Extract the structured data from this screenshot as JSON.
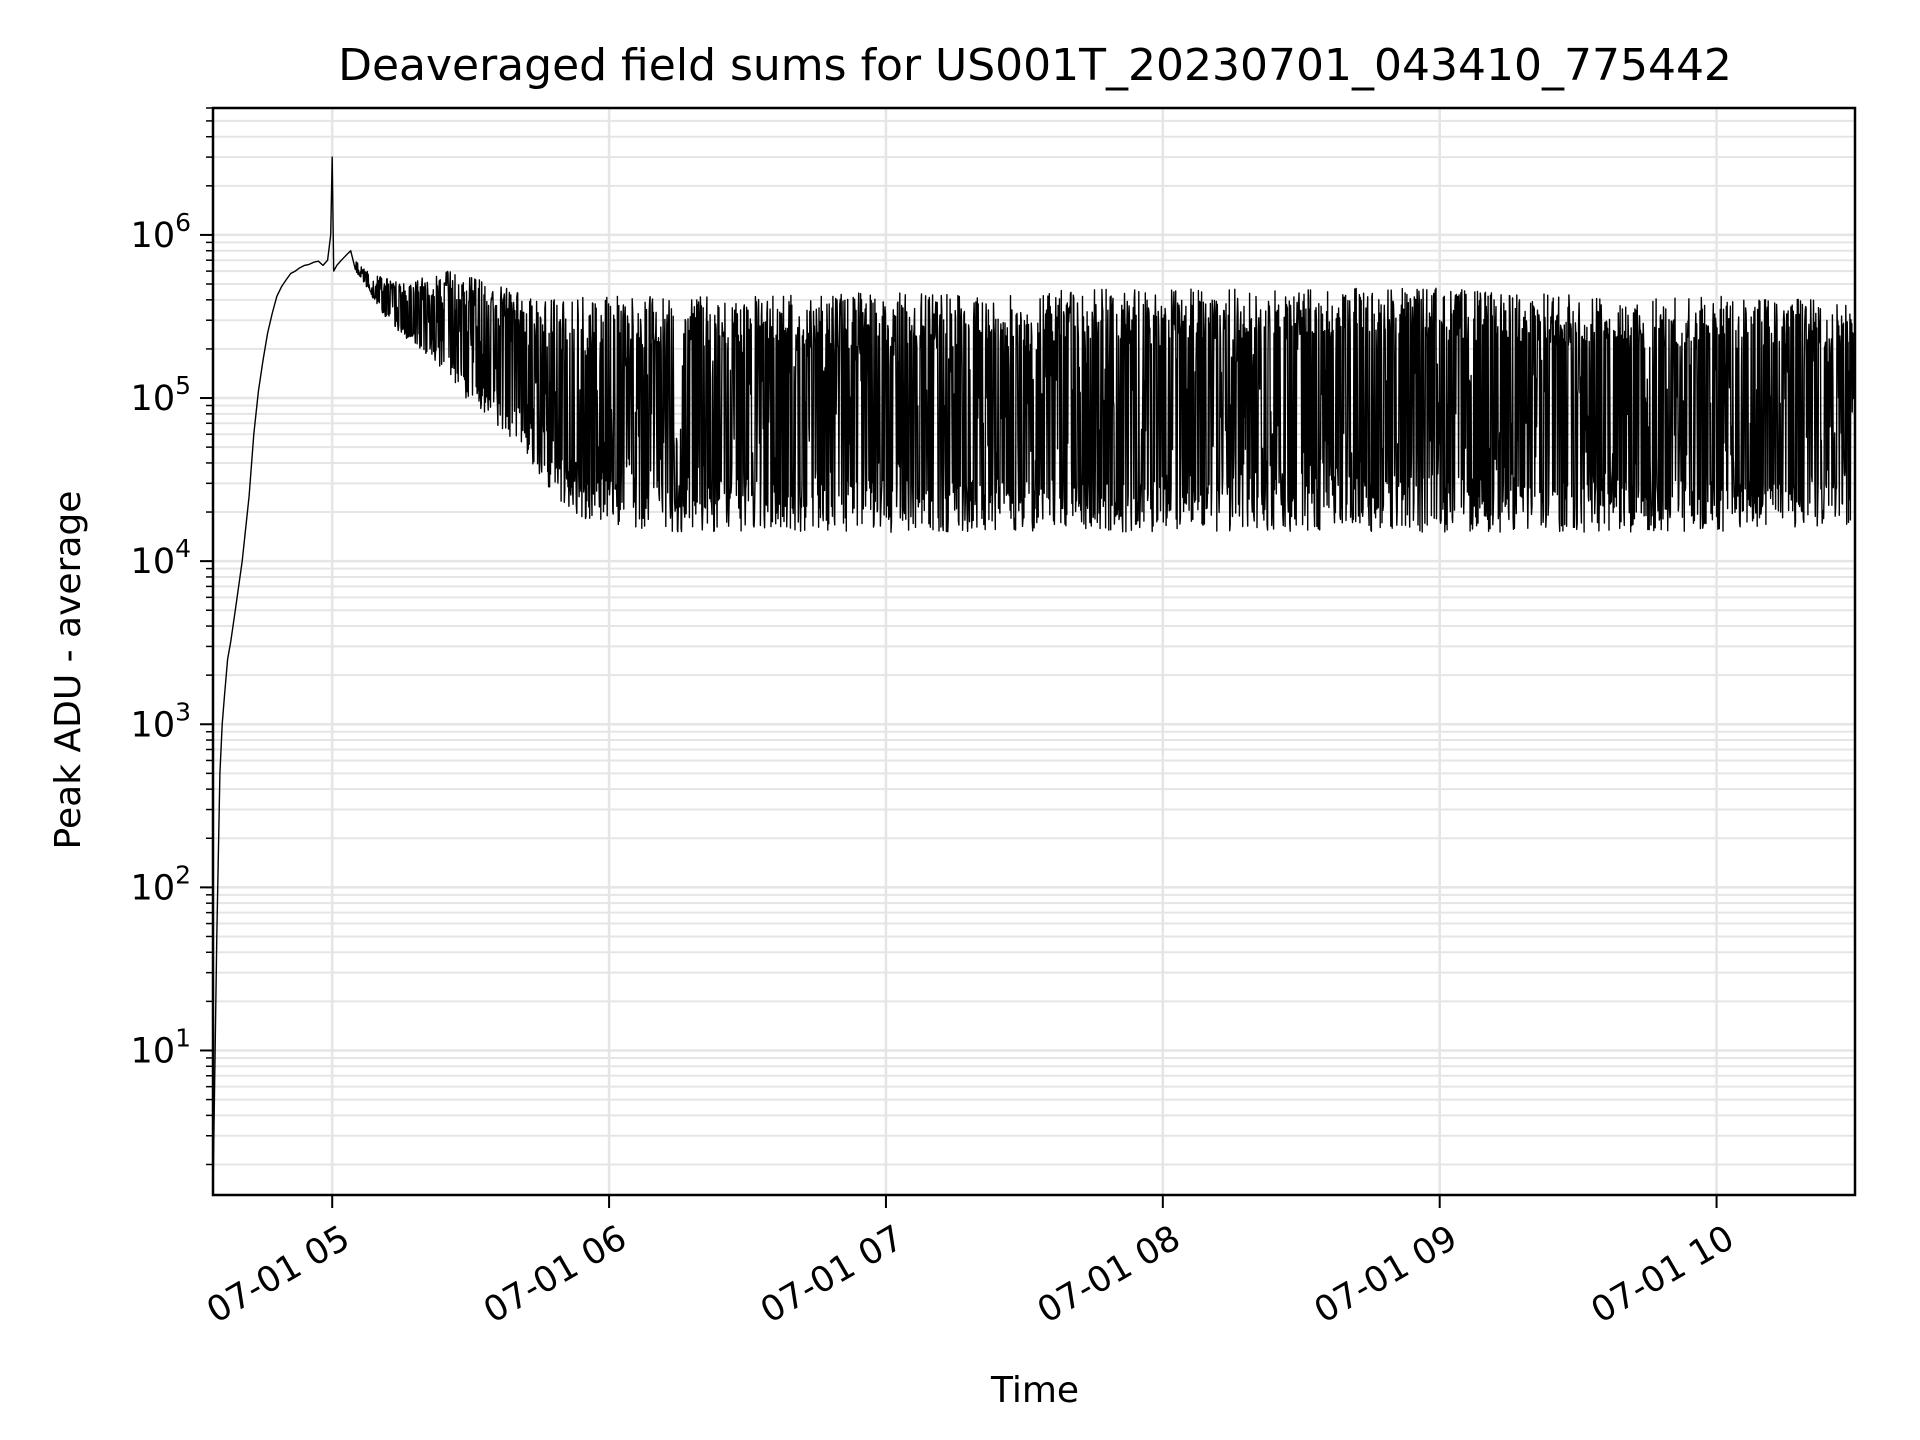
{
  "chart_data": {
    "type": "line",
    "title": "Deaveraged field sums for US001T_20230701_043410_775442",
    "xlabel": "Time",
    "ylabel": "Peak ADU - average",
    "yscale": "log",
    "ylim": [
      1.3,
      6000000
    ],
    "xlim": [
      "2023-07-01 04:34:10",
      "2023-07-01 10:30:00"
    ],
    "grid": true,
    "grid_color": "#e5e5e5",
    "line_color": "#000000",
    "x_ticks": [
      {
        "time": "2023-07-01 05:00:00",
        "label": "07-01 05"
      },
      {
        "time": "2023-07-01 06:00:00",
        "label": "07-01 06"
      },
      {
        "time": "2023-07-01 07:00:00",
        "label": "07-01 07"
      },
      {
        "time": "2023-07-01 08:00:00",
        "label": "07-01 08"
      },
      {
        "time": "2023-07-01 09:00:00",
        "label": "07-01 09"
      },
      {
        "time": "2023-07-01 10:00:00",
        "label": "07-01 10"
      }
    ],
    "y_ticks": [
      {
        "value": 10,
        "base": "10",
        "exp": "1"
      },
      {
        "value": 100,
        "base": "10",
        "exp": "2"
      },
      {
        "value": 1000,
        "base": "10",
        "exp": "3"
      },
      {
        "value": 10000,
        "base": "10",
        "exp": "4"
      },
      {
        "value": 100000,
        "base": "10",
        "exp": "5"
      },
      {
        "value": 1000000,
        "base": "10",
        "exp": "6"
      }
    ],
    "series": [
      {
        "x": [
          "2023-07-01 04:34:10",
          "2023-07-01 04:35:00",
          "2023-07-01 04:35:40",
          "2023-07-01 04:36:10",
          "2023-07-01 04:36:40",
          "2023-07-01 04:37:20",
          "2023-07-01 04:38:00",
          "2023-07-01 04:39:00",
          "2023-07-01 04:40:30",
          "2023-07-01 04:42:00",
          "2023-07-01 04:43:00",
          "2023-07-01 04:44:00",
          "2023-07-01 04:45:00",
          "2023-07-01 04:46:00",
          "2023-07-01 04:47:00",
          "2023-07-01 04:48:00",
          "2023-07-01 04:49:00",
          "2023-07-01 04:50:00",
          "2023-07-01 04:51:00",
          "2023-07-01 04:52:00",
          "2023-07-01 04:53:00",
          "2023-07-01 04:54:00",
          "2023-07-01 04:55:00",
          "2023-07-01 04:56:00",
          "2023-07-01 04:57:00",
          "2023-07-01 04:58:00",
          "2023-07-01 04:59:00",
          "2023-07-01 04:59:40",
          "2023-07-01 05:00:00",
          "2023-07-01 05:00:20",
          "2023-07-01 05:01:00",
          "2023-07-01 05:02:00",
          "2023-07-01 05:03:00",
          "2023-07-01 05:04:00",
          "2023-07-01 05:05:00",
          "2023-07-01 05:06:00",
          "2023-07-01 05:07:00",
          "2023-07-01 05:08:00",
          "2023-07-01 05:09:00",
          "2023-07-01 05:10:00",
          "2023-07-01 05:11:00",
          "2023-07-01 05:12:00",
          "2023-07-01 05:13:00",
          "2023-07-01 05:14:00",
          "2023-07-01 05:15:00",
          "2023-07-01 05:17:00",
          "2023-07-01 05:19:00",
          "2023-07-01 05:21:00",
          "2023-07-01 05:23:00",
          "2023-07-01 05:25:00",
          "2023-07-01 05:27:00",
          "2023-07-01 05:29:00",
          "2023-07-01 05:31:00",
          "2023-07-01 05:33:00",
          "2023-07-01 05:35:00",
          "2023-07-01 05:37:00",
          "2023-07-01 05:39:00",
          "2023-07-01 05:41:00",
          "2023-07-01 05:43:00",
          "2023-07-01 05:46:00",
          "2023-07-01 05:50:00",
          "2023-07-01 05:55:00",
          "2023-07-01 06:00:00",
          "2023-07-01 06:10:00",
          "2023-07-01 06:20:00",
          "2023-07-01 06:30:00",
          "2023-07-01 06:40:00",
          "2023-07-01 06:50:00",
          "2023-07-01 07:00:00",
          "2023-07-01 07:10:00",
          "2023-07-01 07:20:00",
          "2023-07-01 07:30:00",
          "2023-07-01 07:40:00",
          "2023-07-01 07:50:00",
          "2023-07-01 08:00:00",
          "2023-07-01 08:10:00",
          "2023-07-01 08:20:00",
          "2023-07-01 08:30:00",
          "2023-07-01 08:40:00",
          "2023-07-01 08:50:00",
          "2023-07-01 09:00:00",
          "2023-07-01 09:10:00",
          "2023-07-01 09:20:00",
          "2023-07-01 09:30:00",
          "2023-07-01 09:40:00",
          "2023-07-01 09:50:00",
          "2023-07-01 10:00:00",
          "2023-07-01 10:10:00",
          "2023-07-01 10:20:00",
          "2023-07-01 10:30:00"
        ],
        "y": [
          1.3,
          50,
          500,
          1000,
          1500,
          2500,
          3200,
          5000,
          10000,
          25000,
          60000,
          110000,
          170000,
          250000,
          330000,
          420000,
          480000,
          530000,
          580000,
          600000,
          630000,
          650000,
          660000,
          680000,
          690000,
          650000,
          700000,
          1000000,
          3000000,
          600000,
          650000,
          700000,
          750000,
          800000,
          650000,
          600000,
          550000,
          500000,
          480000,
          450000,
          400000,
          420000,
          380000,
          360000,
          340000,
          320000,
          300000,
          290000,
          280000,
          260000,
          240000,
          230000,
          220000,
          210000,
          200000,
          190000,
          180000,
          170000,
          150000,
          130000,
          110000,
          100000,
          90000,
          85000,
          82000,
          80000,
          80000,
          80000,
          78000,
          78000,
          80000,
          80000,
          82000,
          85000,
          90000,
          95000,
          100000,
          100000,
          98000,
          95000,
          90000,
          88000,
          85000,
          82000,
          80000,
          80000,
          80000,
          82000,
          85000,
          85000
        ],
        "hi": [
          1.3,
          50,
          500,
          1000,
          1500,
          2500,
          3200,
          5000,
          10000,
          25000,
          60000,
          110000,
          170000,
          250000,
          330000,
          420000,
          480000,
          530000,
          580000,
          600000,
          630000,
          650000,
          660000,
          680000,
          690000,
          650000,
          700000,
          1000000,
          3000000,
          600000,
          650000,
          700000,
          750000,
          800000,
          700000,
          650000,
          620000,
          600000,
          580000,
          560000,
          550000,
          540000,
          530000,
          520000,
          500000,
          520000,
          540000,
          560000,
          580000,
          600000,
          580000,
          560000,
          540000,
          520000,
          500000,
          480000,
          460000,
          440000,
          420000,
          420000,
          420000,
          420000,
          420000,
          430000,
          420000,
          420000,
          430000,
          440000,
          440000,
          440000,
          430000,
          440000,
          460000,
          470000,
          480000,
          470000,
          470000,
          470000,
          480000,
          490000,
          480000,
          450000,
          440000,
          430000,
          420000,
          420000,
          420000,
          410000,
          410000,
          400000
        ],
        "lo": [
          1.3,
          50,
          500,
          1000,
          1500,
          2500,
          3200,
          5000,
          10000,
          25000,
          60000,
          110000,
          170000,
          250000,
          330000,
          420000,
          480000,
          530000,
          580000,
          600000,
          630000,
          650000,
          660000,
          680000,
          690000,
          650000,
          700000,
          1000000,
          3000000,
          600000,
          650000,
          700000,
          750000,
          800000,
          600000,
          550000,
          500000,
          450000,
          400000,
          360000,
          320000,
          300000,
          280000,
          260000,
          240000,
          220000,
          200000,
          180000,
          160000,
          140000,
          120000,
          100000,
          90000,
          80000,
          70000,
          60000,
          55000,
          50000,
          40000,
          30000,
          22000,
          18000,
          17000,
          15000,
          15000,
          15000,
          15000,
          15000,
          15000,
          15000,
          15000,
          15000,
          15000,
          15000,
          15000,
          15000,
          15000,
          15000,
          15000,
          15000,
          15000,
          15000,
          15000,
          15000,
          15000,
          15000,
          15000,
          16000,
          16000,
          17000
        ],
        "noise_from": "2023-07-01 05:05:00"
      }
    ]
  }
}
